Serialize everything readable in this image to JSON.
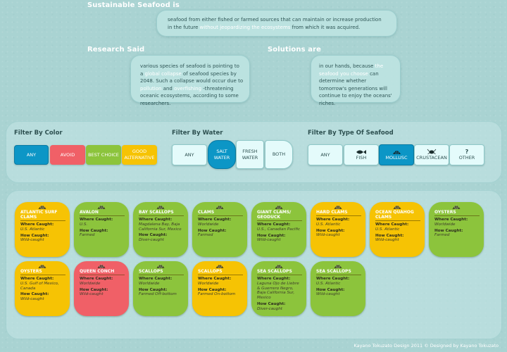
{
  "intro": {
    "sustainable_heading": "Sustainable Seafood is",
    "sustainable_text_a": "seafood from either fished or farmed sources that can maintain or increase production in the future ",
    "sustainable_hl": "without jeopardizing the ecosystems",
    "sustainable_text_b": " from which it was acquired.",
    "research_heading": "Research Said",
    "research_text_a": "various species of seafood is pointing to a ",
    "research_hl1": "global collapse",
    "research_text_b": " of seafood species by 2048. Such a collapse would occur due to ",
    "research_hl2": "pollution",
    "research_text_c": " and ",
    "research_hl3": "overfishing",
    "research_text_d": " -threatening oceanic ecosystems, according to some researchers.",
    "solutions_heading": "Solutions are",
    "solutions_text_a": "in our hands, because ",
    "solutions_hl": "the seafood you choose",
    "solutions_text_b": " can determine whether tomorrow's generations will continue to enjoy the oceans' riches."
  },
  "filters": {
    "color": {
      "title": "Filter By Color",
      "options": [
        {
          "label": "ANY",
          "color": "#0c96c6"
        },
        {
          "label": "AVOID",
          "color": "#f06067"
        },
        {
          "label": "BEST CHOICE",
          "color": "#8cc43c"
        },
        {
          "label": "GOOD ALTERNATIVE",
          "color": "#f6c304"
        }
      ],
      "selected": "ANY"
    },
    "water": {
      "title": "Filter By Water",
      "options": [
        "ANY",
        "SALT WATER",
        "FRESH WATER",
        "BOTH"
      ],
      "selected": "SALT WATER"
    },
    "type": {
      "title": "Filter By Type Of Seafood",
      "options": [
        {
          "label": "ANY",
          "icon": ""
        },
        {
          "label": "FISH",
          "icon": "fish-icon"
        },
        {
          "label": "MOLLUSC",
          "icon": "shell-icon"
        },
        {
          "label": "CRUSTACEAN",
          "icon": "crab-icon"
        },
        {
          "label": "OTHER",
          "icon": "question-icon"
        }
      ],
      "selected": "MOLLUSC"
    }
  },
  "labels": {
    "where": "Where Caught:",
    "how": "How Caught:"
  },
  "cards": [
    {
      "name": "ATLANTIC SURF CLAMS",
      "where": "U.S. Atlantic",
      "how": "Wild-caught",
      "status": "yellow"
    },
    {
      "name": "AVALON",
      "where": "U.S.",
      "how": "Farmed",
      "status": "green"
    },
    {
      "name": "BAY SCALLOPS",
      "where": "Magdalena Bay, Baja California Sur, Mexico",
      "how": "Diver-caught",
      "status": "green"
    },
    {
      "name": "CLAMS",
      "where": "Worldwide",
      "how": "Farmed",
      "status": "green"
    },
    {
      "name": "GIANT CLAMS/ GEODUCK",
      "where": "U.S., Canadian Pacific",
      "how": "Wild-caught",
      "status": "green"
    },
    {
      "name": "HARD CLAMS",
      "where": "U.S. Atlantic",
      "how": "Wild-caught",
      "status": "yellow"
    },
    {
      "name": "OCEAN QUAHOG CLAMS",
      "where": "U.S. Atlantic",
      "how": "Wild-caught",
      "status": "yellow"
    },
    {
      "name": "OYSTERS",
      "where": "Worldwide",
      "how": "Farmed",
      "status": "green"
    },
    {
      "name": "OYSTERS",
      "where": "U.S. Gulf of Mexico, Canada",
      "how": "Wild-caught",
      "status": "yellow"
    },
    {
      "name": "QUEEN CONCH",
      "where": "Worldwide",
      "how": "Wild-caught",
      "status": "red"
    },
    {
      "name": "SCALLOPS",
      "where": "Worldwide",
      "how": "Farmed Off-bottom",
      "status": "green"
    },
    {
      "name": "SCALLOPS",
      "where": "Worldwide",
      "how": "Farmed On-bottom",
      "status": "yellow"
    },
    {
      "name": "SEA SCALLOPS",
      "where": "Laguna Ojo de Liebre & Guerrero Negro, Baja California Sur, Mexico",
      "how": "Diver-caught",
      "status": "green"
    },
    {
      "name": "SEA SCALLOPS",
      "where": "U.S. Atlantic",
      "how": "Wild-caught",
      "status": "green"
    }
  ],
  "footer": "Kayano Tokuzato Design 2011 © Designed by Kayano Tokuzato"
}
